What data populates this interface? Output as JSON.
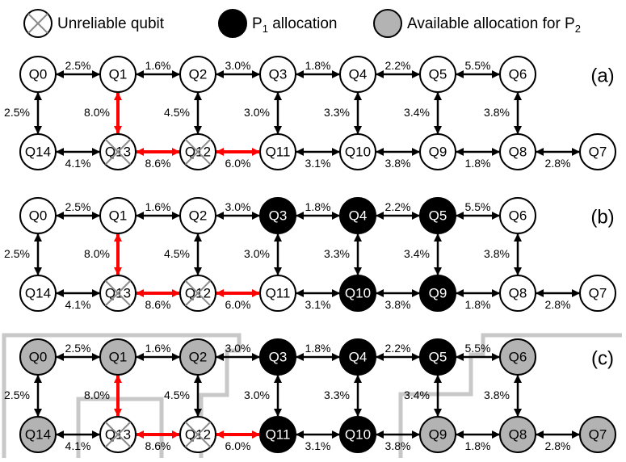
{
  "legend": [
    {
      "text": "Unreliable qubit",
      "kind": "unreliable"
    },
    {
      "text": "P",
      "sub": "1",
      "tail": " allocation",
      "kind": "p1"
    },
    {
      "text": "Available allocation for P",
      "sub": "2",
      "tail": "",
      "kind": "p2"
    }
  ],
  "colors": {
    "black": "#000000",
    "red": "#ff0000",
    "gray": "#b3b3b3",
    "boundary": "#c8c8c8",
    "cross": "#8c8c8c",
    "white": "#ffffff"
  },
  "qubits_top": [
    "Q0",
    "Q1",
    "Q2",
    "Q3",
    "Q4",
    "Q5",
    "Q6"
  ],
  "qubits_bottom": [
    "Q14",
    "Q13",
    "Q12",
    "Q11",
    "Q10",
    "Q9",
    "Q8",
    "Q7"
  ],
  "unreliable": [
    "Q13",
    "Q12"
  ],
  "edges_top": [
    {
      "from": "Q0",
      "to": "Q1",
      "label": "2.5%"
    },
    {
      "from": "Q1",
      "to": "Q2",
      "label": "1.6%"
    },
    {
      "from": "Q2",
      "to": "Q3",
      "label": "3.0%"
    },
    {
      "from": "Q3",
      "to": "Q4",
      "label": "1.8%"
    },
    {
      "from": "Q4",
      "to": "Q5",
      "label": "2.2%"
    },
    {
      "from": "Q5",
      "to": "Q6",
      "label": "5.5%"
    }
  ],
  "edges_bottom": [
    {
      "from": "Q14",
      "to": "Q13",
      "label": "4.1%",
      "red": false
    },
    {
      "from": "Q13",
      "to": "Q12",
      "label": "8.6%",
      "red": true
    },
    {
      "from": "Q12",
      "to": "Q11",
      "label": "6.0%",
      "red": true
    },
    {
      "from": "Q11",
      "to": "Q10",
      "label": "3.1%",
      "red": false
    },
    {
      "from": "Q10",
      "to": "Q9",
      "label": "3.8%",
      "red": false
    },
    {
      "from": "Q9",
      "to": "Q8",
      "label": "1.8%",
      "red": false
    },
    {
      "from": "Q8",
      "to": "Q7",
      "label": "2.8%",
      "red": false
    }
  ],
  "edges_vertical": [
    {
      "from": "Q0",
      "to": "Q14",
      "label": "2.5%",
      "red": false
    },
    {
      "from": "Q1",
      "to": "Q13",
      "label": "8.0%",
      "red": true
    },
    {
      "from": "Q2",
      "to": "Q12",
      "label": "4.5%",
      "red": false
    },
    {
      "from": "Q3",
      "to": "Q11",
      "label": "3.0%",
      "red": false
    },
    {
      "from": "Q4",
      "to": "Q10",
      "label": "3.3%",
      "red": false
    },
    {
      "from": "Q5",
      "to": "Q9",
      "label": "3.4%",
      "red": false
    },
    {
      "from": "Q6",
      "to": "Q8",
      "label": "3.8%",
      "red": false
    }
  ],
  "panels": [
    {
      "label": "(a)",
      "p1": [],
      "p2": []
    },
    {
      "label": "(b)",
      "p1": [
        "Q3",
        "Q4",
        "Q5",
        "Q10",
        "Q9"
      ],
      "p2": []
    },
    {
      "label": "(c)",
      "p1": [
        "Q3",
        "Q4",
        "Q5",
        "Q11",
        "Q10"
      ],
      "p2": [
        "Q0",
        "Q1",
        "Q2",
        "Q14",
        "Q6",
        "Q9",
        "Q8",
        "Q7"
      ]
    }
  ]
}
